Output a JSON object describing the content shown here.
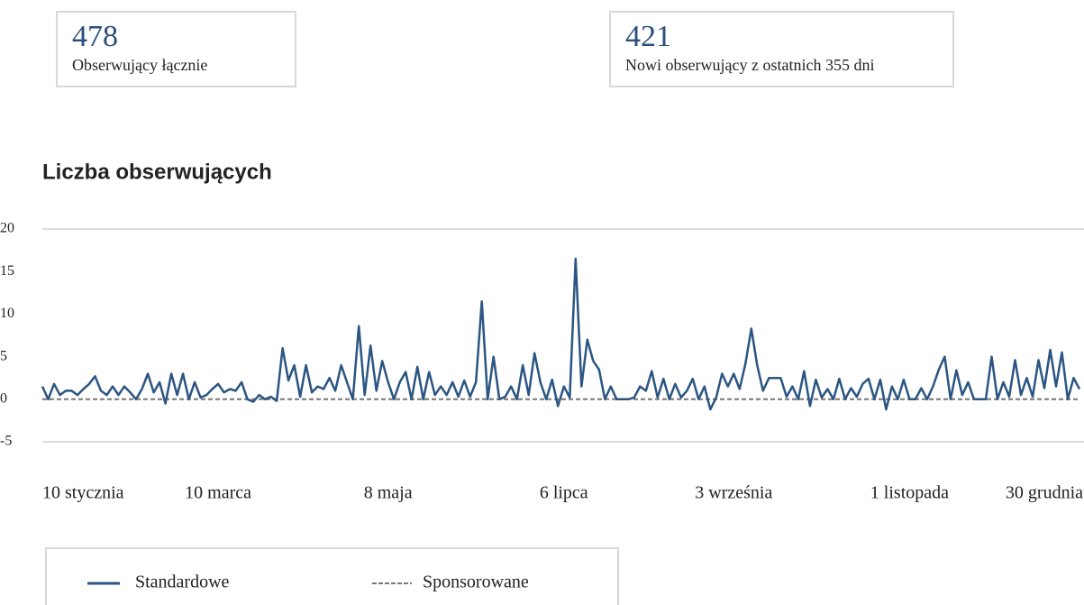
{
  "stats": [
    {
      "value": 478,
      "label": "Obserwujący łącznie"
    },
    {
      "value": 421,
      "label": "Nowi obserwujący z ostatnich 355 dni"
    }
  ],
  "chart_data": {
    "type": "line",
    "title": "Liczba obserwujących",
    "categories": [
      "10 stycznia",
      null,
      null,
      null,
      null,
      null,
      null,
      null,
      null,
      null,
      null,
      null,
      null,
      null,
      null,
      null,
      null,
      null,
      null,
      null,
      null,
      null,
      null,
      null,
      null,
      null,
      null,
      null,
      null,
      null,
      "10 marca",
      null,
      null,
      null,
      null,
      null,
      null,
      null,
      null,
      null,
      null,
      null,
      null,
      null,
      null,
      null,
      null,
      null,
      null,
      null,
      null,
      null,
      null,
      null,
      null,
      null,
      null,
      null,
      null,
      "8 maja",
      null,
      null,
      null,
      null,
      null,
      null,
      null,
      null,
      null,
      null,
      null,
      null,
      null,
      null,
      null,
      null,
      null,
      null,
      null,
      null,
      null,
      null,
      null,
      null,
      null,
      null,
      null,
      null,
      null,
      "6 lipca",
      null,
      null,
      null,
      null,
      null,
      null,
      null,
      null,
      null,
      null,
      null,
      null,
      null,
      null,
      null,
      null,
      null,
      null,
      null,
      null,
      null,
      null,
      null,
      null,
      null,
      null,
      null,
      null,
      "3 września",
      null,
      null,
      null,
      null,
      null,
      null,
      null,
      null,
      null,
      null,
      null,
      null,
      null,
      null,
      null,
      null,
      null,
      null,
      null,
      null,
      null,
      null,
      null,
      null,
      null,
      null,
      null,
      null,
      null,
      "1 listopada",
      null,
      null,
      null,
      null,
      null,
      null,
      null,
      null,
      null,
      null,
      null,
      null,
      null,
      null,
      null,
      null,
      null,
      null,
      null,
      null,
      null,
      null,
      null,
      null,
      null,
      null,
      null,
      null,
      "30 grudnia"
    ],
    "series": [
      {
        "name": "Standardowe",
        "color": "#2b5582",
        "style": "solid",
        "values": [
          1.5,
          0,
          1.8,
          0.5,
          1,
          1,
          0.5,
          1.2,
          1.8,
          2.7,
          1,
          0.5,
          1.5,
          0.5,
          1.5,
          0.8,
          0,
          1.2,
          3,
          0.8,
          2,
          -0.5,
          3,
          0.5,
          3,
          0,
          2,
          0.2,
          0.5,
          1.2,
          1.8,
          0.8,
          1.2,
          1,
          2,
          0,
          -0.3,
          0.5,
          0,
          0.3,
          -0.2,
          6,
          2.2,
          4,
          0.3,
          4,
          0.8,
          1.5,
          1.2,
          2.5,
          1,
          4,
          2,
          0,
          8.6,
          0.5,
          6.3,
          1,
          4.5,
          2,
          0,
          2,
          3.2,
          0,
          3.8,
          0,
          3.2,
          0.5,
          1.5,
          0.5,
          2,
          0.3,
          2.2,
          0.3,
          2,
          11.5,
          0,
          5,
          0,
          0.3,
          1.5,
          0,
          4,
          0.5,
          5.4,
          2,
          0,
          2.3,
          -0.8,
          1.5,
          0.2,
          16.5,
          1.5,
          7,
          4.5,
          3.5,
          0,
          1.5,
          0,
          0,
          0,
          0.2,
          1.5,
          1,
          3.3,
          0.2,
          2.4,
          0,
          1.8,
          0.2,
          1,
          2.4,
          0,
          1.5,
          -1.2,
          0.2,
          3,
          1.5,
          3,
          1.2,
          4.2,
          8.3,
          4,
          1,
          2.5,
          2.5,
          2.5,
          0.3,
          1.5,
          0,
          3.3,
          -0.8,
          2.3,
          0.2,
          1.2,
          0,
          2.4,
          0,
          1.3,
          0.3,
          1.8,
          2.4,
          0,
          2.3,
          -1.2,
          1.5,
          0,
          2.3,
          0,
          0,
          1.3,
          0,
          1.5,
          3.5,
          5,
          0,
          3.4,
          0.5,
          2,
          0,
          0,
          0,
          5,
          0,
          2,
          0.3,
          4.6,
          0.5,
          2.5,
          0.3,
          4.6,
          1.3,
          5.8,
          1.5,
          5.5,
          0,
          2.5,
          1.2
        ]
      },
      {
        "name": "Sponsorowane",
        "color": "#777777",
        "style": "dashed",
        "values": [
          0,
          0,
          0,
          0,
          0,
          0,
          0,
          0,
          0,
          0,
          0,
          0,
          0,
          0,
          0,
          0,
          0,
          0,
          0,
          0,
          0,
          0,
          0,
          0,
          0,
          0,
          0,
          0,
          0,
          0,
          0,
          0,
          0,
          0,
          0,
          0,
          0,
          0,
          0,
          0,
          0,
          0,
          0,
          0,
          0,
          0,
          0,
          0,
          0,
          0,
          0,
          0,
          0,
          0,
          0,
          0,
          0,
          0,
          0,
          0,
          0,
          0,
          0,
          0,
          0,
          0,
          0,
          0,
          0,
          0,
          0,
          0,
          0,
          0,
          0,
          0,
          0,
          0,
          0,
          0,
          0,
          0,
          0,
          0,
          0,
          0,
          0,
          0,
          0,
          0,
          0,
          0,
          0,
          0,
          0,
          0,
          0,
          0,
          0,
          0,
          0,
          0,
          0,
          0,
          0,
          0,
          0,
          0,
          0,
          0,
          0,
          0,
          0,
          0,
          0,
          0,
          0,
          0,
          0,
          0,
          0,
          0,
          0,
          0,
          0,
          0,
          0,
          0,
          0,
          0,
          0,
          0,
          0,
          0,
          0,
          0,
          0,
          0,
          0,
          0,
          0,
          0,
          0,
          0,
          0,
          0,
          0,
          0,
          0,
          0,
          0,
          0,
          0,
          0,
          0,
          0,
          0,
          0,
          0,
          0,
          0,
          0,
          0,
          0,
          0,
          0,
          0,
          0,
          0,
          0,
          0,
          0,
          0,
          0,
          0,
          0,
          0,
          0
        ]
      }
    ],
    "ylim": [
      -5,
      20
    ],
    "yticks": [
      -5,
      0,
      5,
      10,
      15,
      20
    ],
    "grid": false,
    "legend": "bottom-left"
  }
}
